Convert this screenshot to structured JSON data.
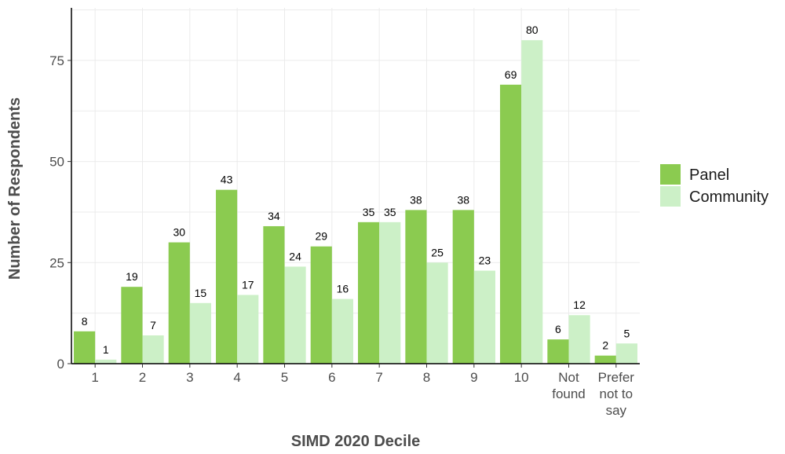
{
  "chart_data": {
    "type": "bar",
    "categories": [
      [
        "1"
      ],
      [
        "2"
      ],
      [
        "3"
      ],
      [
        "4"
      ],
      [
        "5"
      ],
      [
        "6"
      ],
      [
        "7"
      ],
      [
        "8"
      ],
      [
        "9"
      ],
      [
        "10"
      ],
      [
        "Not",
        "found"
      ],
      [
        "Prefer",
        "not to",
        "say"
      ]
    ],
    "series": [
      {
        "name": "Panel",
        "color": "#8bcb50",
        "values": [
          8,
          19,
          30,
          43,
          34,
          29,
          35,
          38,
          38,
          69,
          6,
          2
        ]
      },
      {
        "name": "Community",
        "color": "#ccf0c7",
        "values": [
          1,
          7,
          15,
          17,
          24,
          16,
          35,
          25,
          23,
          80,
          12,
          5
        ]
      }
    ],
    "xlabel": "SIMD 2020 Decile",
    "ylabel": "Number of Respondents",
    "ylim": [
      0,
      88
    ],
    "yticks": [
      0,
      25,
      50,
      75
    ],
    "grid": true,
    "legend_position": "right"
  }
}
